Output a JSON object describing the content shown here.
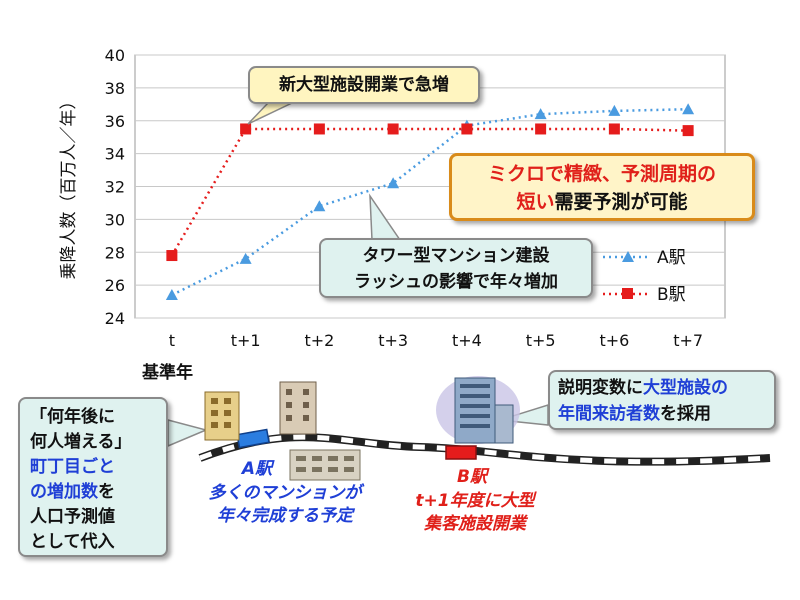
{
  "chart_data": {
    "type": "line",
    "categories": [
      "t",
      "t+1",
      "t+2",
      "t+3",
      "t+4",
      "t+5",
      "t+6",
      "t+7"
    ],
    "series": [
      {
        "name": "A駅",
        "color": "#4a9be0",
        "marker": "triangle",
        "values": [
          25.4,
          27.6,
          30.8,
          32.2,
          35.7,
          36.4,
          36.6,
          36.7
        ]
      },
      {
        "name": "B駅",
        "color": "#e51c1c",
        "marker": "square",
        "values": [
          27.8,
          35.5,
          35.5,
          35.5,
          35.5,
          35.5,
          35.5,
          35.4
        ]
      }
    ],
    "ylabel": "乗降人数（百万人／年）",
    "ylim": [
      24,
      40
    ],
    "yticks": [
      24,
      26,
      28,
      30,
      32,
      34,
      36,
      38,
      40
    ],
    "grid": true,
    "legend": "right"
  },
  "labels": {
    "base_year": "基準年",
    "callout_surge": "新大型施設開業で急増",
    "callout_micro_1a": "ミクロで精緻、予測周期の",
    "callout_micro_2a": "短い",
    "callout_micro_2b": "需要予測が可能",
    "callout_tower_1": "タワー型マンション建設",
    "callout_tower_2": "ラッシュの影響で年々増加",
    "callout_left_1": "「何年後に",
    "callout_left_2": "何人増える」",
    "callout_left_3": "町丁目ごと",
    "callout_left_4a": "の増加数",
    "callout_left_4b": "を",
    "callout_left_5": "人口予測値",
    "callout_left_6": "として代入",
    "callout_var_1a": "説明変数に",
    "callout_var_1b": "大型施設の",
    "callout_var_2a": "年間来訪者数",
    "callout_var_2b": "を採用",
    "station_a": "A駅",
    "station_a_note_1": "多くのマンションが",
    "station_a_note_2": "年々完成する予定",
    "station_b": "B駅",
    "station_b_note_1": "t+1年度に大型",
    "station_b_note_2": "集客施設開業"
  }
}
